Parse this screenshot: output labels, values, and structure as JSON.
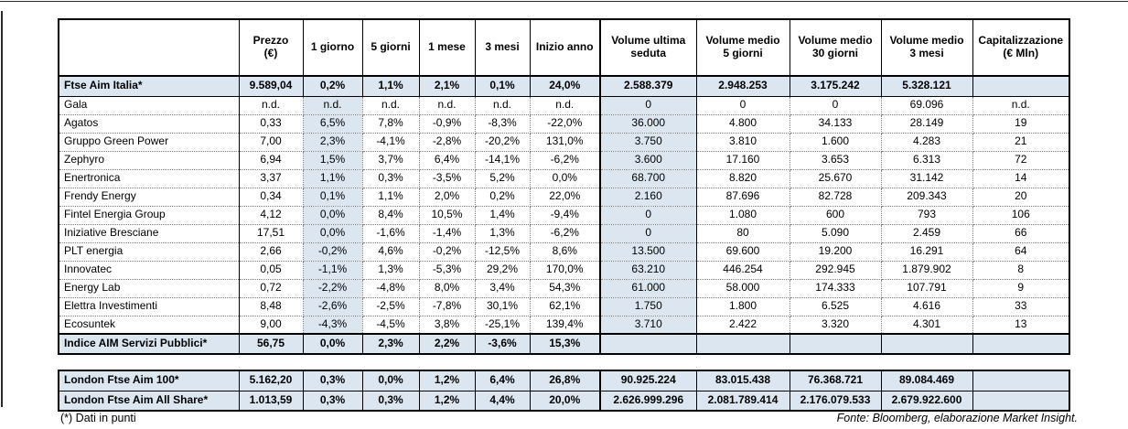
{
  "colors": {
    "row_highlight": "#dce6f1",
    "border": "#000000",
    "text": "#000000"
  },
  "footnotes": {
    "left": "(*) Dati in punti",
    "right": "Fonte: Bloomberg, elaborazione Market Insight."
  },
  "main_table": {
    "headers": [
      "",
      "Prezzo\n(€)",
      "1 giorno",
      "5 giorni",
      "1 mese",
      "3 mesi",
      "Inizio anno",
      "Volume ultima\nseduta",
      "Volume medio\n5 giorni",
      "Volume medio\n30 giorni",
      "Volume medio\n3 mesi",
      "Capitalizzazione\n(€ Mln)"
    ],
    "index_row": {
      "name": "Ftse Aim Italia*",
      "values": [
        "9.589,04",
        "0,2%",
        "1,1%",
        "2,1%",
        "0,1%",
        "24,0%",
        "2.588.379",
        "2.948.253",
        "3.175.242",
        "5.328.121",
        ""
      ]
    },
    "company_rows": [
      {
        "name": "Gala",
        "values": [
          "n.d.",
          "n.d.",
          "n.d.",
          "n.d.",
          "n.d.",
          "n.d.",
          "0",
          "0",
          "0",
          "69.096",
          "n.d."
        ]
      },
      {
        "name": "Agatos",
        "values": [
          "0,33",
          "6,5%",
          "7,8%",
          "-0,9%",
          "-8,3%",
          "-22,0%",
          "36.000",
          "4.800",
          "34.133",
          "28.149",
          "19"
        ]
      },
      {
        "name": "Gruppo Green Power",
        "values": [
          "7,00",
          "2,3%",
          "-4,1%",
          "-2,8%",
          "-20,2%",
          "131,0%",
          "3.750",
          "3.810",
          "1.600",
          "4.283",
          "21"
        ]
      },
      {
        "name": "Zephyro",
        "values": [
          "6,94",
          "1,5%",
          "3,7%",
          "6,4%",
          "-14,1%",
          "-6,2%",
          "3.600",
          "17.160",
          "3.653",
          "6.313",
          "72"
        ]
      },
      {
        "name": "Enertronica",
        "values": [
          "3,37",
          "1,1%",
          "0,3%",
          "-3,5%",
          "5,2%",
          "0,0%",
          "68.700",
          "8.820",
          "25.670",
          "31.142",
          "14"
        ]
      },
      {
        "name": "Frendy Energy",
        "values": [
          "0,34",
          "0,1%",
          "1,1%",
          "2,0%",
          "0,2%",
          "22,0%",
          "2.160",
          "87.696",
          "82.728",
          "209.343",
          "20"
        ]
      },
      {
        "name": "Fintel Energia Group",
        "values": [
          "4,12",
          "0,0%",
          "8,4%",
          "10,5%",
          "1,4%",
          "-9,4%",
          "0",
          "1.080",
          "600",
          "793",
          "106"
        ]
      },
      {
        "name": "Iniziative Bresciane",
        "values": [
          "17,51",
          "0,0%",
          "-1,6%",
          "-1,4%",
          "1,3%",
          "-6,2%",
          "0",
          "80",
          "5.090",
          "2.459",
          "66"
        ]
      },
      {
        "name": "PLT energia",
        "values": [
          "2,66",
          "-0,2%",
          "4,6%",
          "-0,2%",
          "-12,5%",
          "8,6%",
          "13.500",
          "69.600",
          "19.200",
          "16.291",
          "64"
        ]
      },
      {
        "name": "Innovatec",
        "values": [
          "0,05",
          "-1,1%",
          "1,3%",
          "-5,3%",
          "29,2%",
          "170,0%",
          "63.210",
          "446.254",
          "292.945",
          "1.879.902",
          "8"
        ]
      },
      {
        "name": "Energy Lab",
        "values": [
          "0,72",
          "-2,2%",
          "-4,8%",
          "8,0%",
          "3,4%",
          "54,3%",
          "61.000",
          "58.000",
          "174.333",
          "107.791",
          "9"
        ]
      },
      {
        "name": "Elettra Investimenti",
        "values": [
          "8,48",
          "-2,6%",
          "-2,5%",
          "-7,8%",
          "30,1%",
          "62,1%",
          "1.750",
          "1.800",
          "6.525",
          "4.616",
          "33"
        ]
      },
      {
        "name": "Ecosuntek",
        "values": [
          "9,00",
          "-4,3%",
          "-4,5%",
          "3,8%",
          "-25,1%",
          "139,4%",
          "3.710",
          "2.422",
          "3.320",
          "4.301",
          "13"
        ]
      }
    ],
    "footer_index_row": {
      "name": "Indice AIM Servizi Pubblici*",
      "values": [
        "56,75",
        "0,0%",
        "2,3%",
        "2,2%",
        "-3,6%",
        "15,3%",
        "",
        "",
        "",
        "",
        ""
      ]
    }
  },
  "london_table": {
    "rows": [
      {
        "name": "London Ftse Aim 100*",
        "values": [
          "5.162,20",
          "0,3%",
          "0,0%",
          "1,2%",
          "6,4%",
          "26,8%",
          "90.925.224",
          "83.015.438",
          "76.368.721",
          "89.084.469",
          ""
        ]
      },
      {
        "name": "London Ftse Aim All Share*",
        "values": [
          "1.013,59",
          "0,3%",
          "0,3%",
          "1,2%",
          "4,4%",
          "20,0%",
          "2.626.999.296",
          "2.081.789.414",
          "2.176.079.533",
          "2.679.922.600",
          ""
        ]
      }
    ]
  }
}
